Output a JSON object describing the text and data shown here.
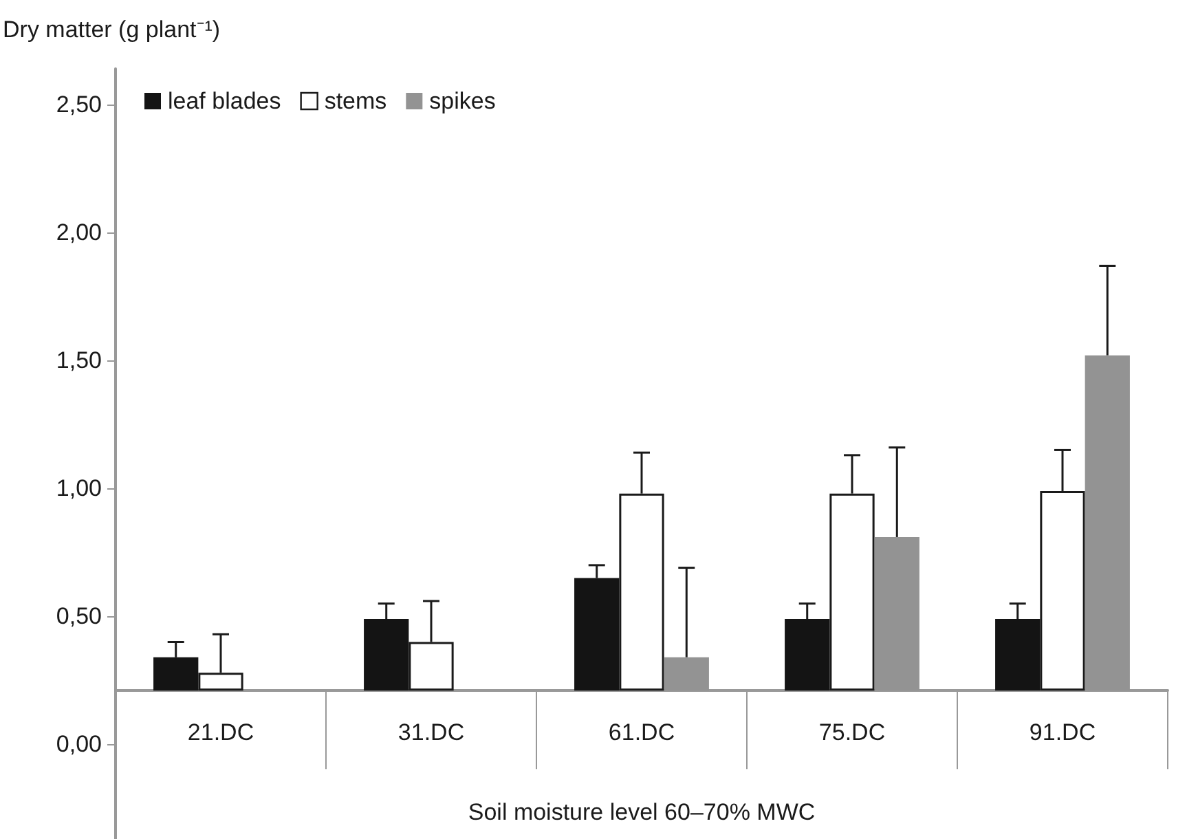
{
  "chart_data": {
    "type": "bar",
    "ylabel": "Dry matter (g plant⁻¹)",
    "xlabel": "Soil moisture level 60–70% MWC",
    "categories": [
      "21.DC",
      "31.DC",
      "61.DC",
      "75.DC",
      "91.DC"
    ],
    "series": [
      {
        "name": "leaf blades",
        "color": "#141414",
        "base": [
          0.21,
          0.21,
          0.21,
          0.21,
          0.21
        ],
        "values": [
          0.13,
          0.28,
          0.44,
          0.28,
          0.28
        ],
        "errors": [
          [
            0.34,
            0.4
          ],
          [
            0.49,
            0.55
          ],
          [
            0.65,
            0.7
          ],
          [
            0.49,
            0.55
          ],
          [
            0.49,
            0.55
          ]
        ]
      },
      {
        "name": "stems",
        "color": "#ffffff",
        "base": [
          0.21,
          0.21,
          0.21,
          0.21,
          0.21
        ],
        "values": [
          0.07,
          0.19,
          0.77,
          0.77,
          0.78
        ],
        "errors": [
          [
            0.28,
            0.43
          ],
          [
            0.4,
            0.56
          ],
          [
            0.98,
            1.14
          ],
          [
            0.98,
            1.13
          ],
          [
            0.99,
            1.15
          ]
        ]
      },
      {
        "name": "spikes",
        "color": "#939393",
        "base": [
          null,
          null,
          0.21,
          0.21,
          0.21
        ],
        "values": [
          null,
          null,
          0.13,
          0.6,
          1.31
        ],
        "errors": [
          null,
          null,
          [
            0.34,
            0.69
          ],
          [
            0.81,
            1.16
          ],
          [
            1.52,
            1.87
          ]
        ]
      }
    ],
    "ylim": [
      -0.37,
      2.64
    ],
    "yticks": [
      {
        "value": 0,
        "label": "0,00"
      },
      {
        "value": 0.5,
        "label": "0,50"
      },
      {
        "value": 1,
        "label": "1,00"
      },
      {
        "value": 1.5,
        "label": "1,50"
      },
      {
        "value": 2,
        "label": "2,00"
      },
      {
        "value": 2.5,
        "label": "2,50"
      }
    ],
    "legend": "top left",
    "grid": false
  }
}
